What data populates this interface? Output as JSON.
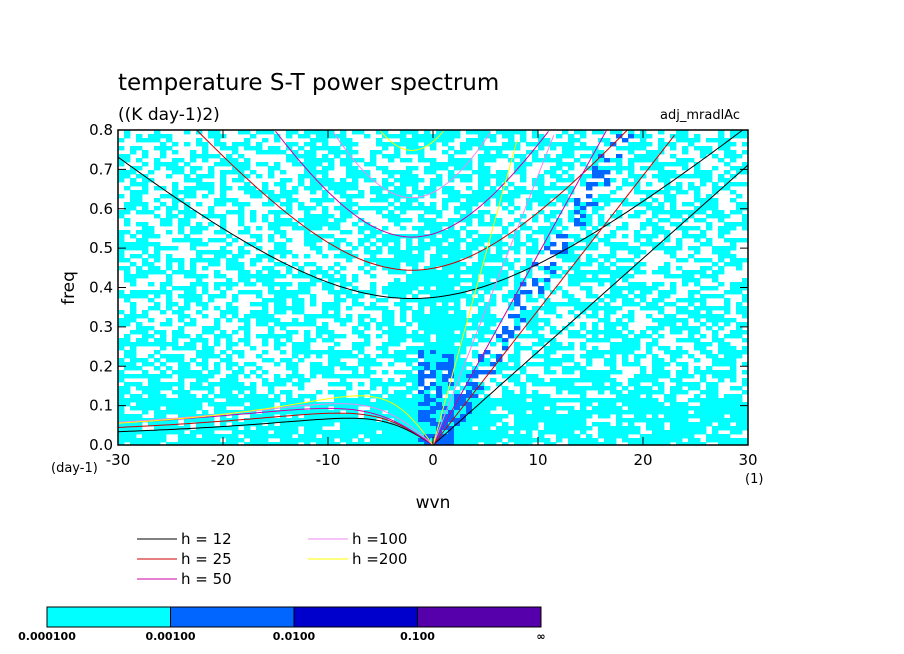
{
  "chart_data": {
    "type": "contour",
    "title": "temperature S-T power spectrum",
    "subtitle": "((K day-1)2)",
    "annotation": "adj_mradlAc",
    "xlabel": "wvn",
    "ylabel": "freq",
    "x_unit": "(1)",
    "y_unit": "(day-1)",
    "xlim": [
      -30,
      30
    ],
    "ylim": [
      0,
      0.8
    ],
    "xticks": [
      -30,
      -20,
      -10,
      0,
      10,
      20,
      30
    ],
    "yticks": [
      0.0,
      0.1,
      0.2,
      0.3,
      0.4,
      0.5,
      0.6,
      0.7,
      0.8
    ],
    "xtick_labels": [
      "-30",
      "-20",
      "-10",
      "0",
      "10",
      "20",
      "30"
    ],
    "ytick_labels": [
      "0.0",
      "0.1",
      "0.2",
      "0.3",
      "0.4",
      "0.5",
      "0.6",
      "0.7",
      "0.8"
    ],
    "dispersion_curves": [
      {
        "label": "h = 12",
        "h": 12,
        "color": "#000000"
      },
      {
        "label": "h = 25",
        "h": 25,
        "color": "#cc0000"
      },
      {
        "label": "h = 50",
        "h": 50,
        "color": "#cc00aa"
      },
      {
        "label": "h =100",
        "h": 100,
        "color": "#ee88ee"
      },
      {
        "label": "h =200",
        "h": 200,
        "color": "#ffff00"
      }
    ],
    "colorbar": {
      "colors": [
        "#00ffff",
        "#0066ff",
        "#0000cc",
        "#5500aa"
      ],
      "labels": [
        "0.000100",
        "0.00100",
        "0.0100",
        "0.100",
        "∞"
      ]
    }
  }
}
